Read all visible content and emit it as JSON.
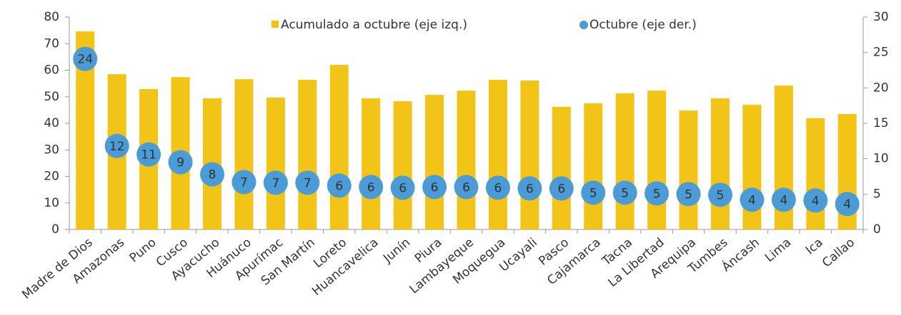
{
  "chart_data": {
    "type": "bar_dot",
    "categories": [
      "Madre de Dios",
      "Amazonas",
      "Puno",
      "Cusco",
      "Ayacucho",
      "Huánuco",
      "Apurímac",
      "San Martín",
      "Loreto",
      "Huancavelica",
      "Junín",
      "Piura",
      "Lambayeque",
      "Moquegua",
      "Ucayali",
      "Pasco",
      "Cajamarca",
      "Tacna",
      "La Libertad",
      "Arequipa",
      "Tumbes",
      "Áncash",
      "Lima",
      "Ica",
      "Callao"
    ],
    "series": [
      {
        "name": "Acumulado a octubre (eje izq.)",
        "color": "#f2c418",
        "values": [
          74.6,
          58.5,
          52.9,
          57.4,
          49.4,
          56.6,
          49.7,
          56.4,
          62,
          49.4,
          48.3,
          50.7,
          52.3,
          56.4,
          56.1,
          46.2,
          47.5,
          51.3,
          52.3,
          44.8,
          49.4,
          47,
          54.2,
          41.9,
          43.5
        ]
      },
      {
        "name": "Octubre (eje der.)",
        "color": "#4a9bd6",
        "axis": "y2",
        "values": [
          24.1,
          11.8,
          10.6,
          9.5,
          7.8,
          6.7,
          6.6,
          6.6,
          6.2,
          6.0,
          5.9,
          6.0,
          6.0,
          5.9,
          5.8,
          5.8,
          5.2,
          5.2,
          5.1,
          5.0,
          4.9,
          4.2,
          4.2,
          4.1,
          3.6
        ],
        "value_labels": [
          "24",
          "12",
          "11",
          "9",
          "8",
          "7",
          "7",
          "7",
          "6",
          "6",
          "6",
          "6",
          "6",
          "6",
          "6",
          "6",
          "5",
          "5",
          "5",
          "5",
          "5",
          "4",
          "4",
          "4",
          "4"
        ]
      }
    ],
    "ylim": [
      0,
      80
    ],
    "yticks": [
      0,
      10,
      20,
      30,
      40,
      50,
      60,
      70,
      80
    ],
    "y2lim": [
      0,
      30
    ],
    "y2ticks": [
      0,
      5,
      10,
      15,
      20,
      25,
      30
    ]
  }
}
